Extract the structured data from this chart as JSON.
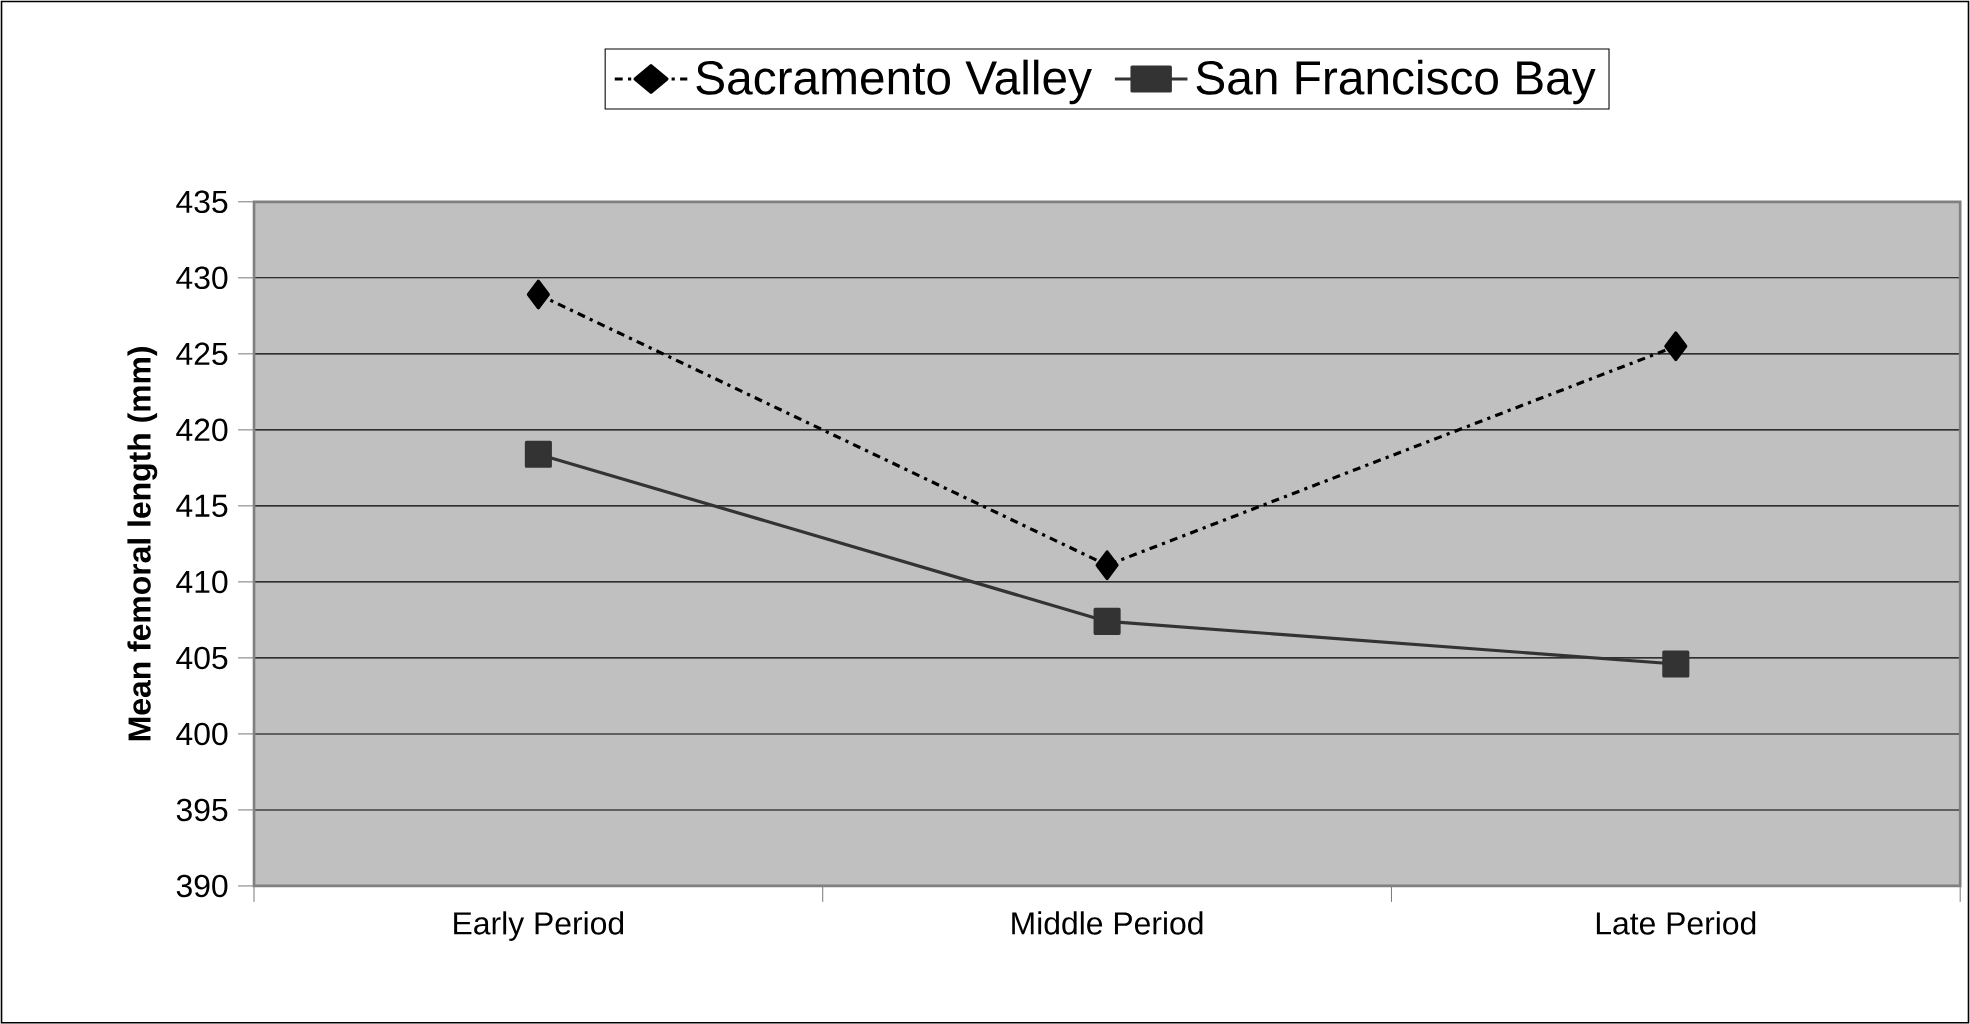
{
  "chart_data": {
    "type": "line",
    "ylabel": "Mean femoral length (mm)",
    "categories": [
      "Early Period",
      "Middle Period",
      "Late Period"
    ],
    "series": [
      {
        "name": "Sacramento Valley",
        "color": "#000000",
        "marker": "diamond",
        "line_style": "dashed",
        "values": [
          428.9,
          411.1,
          425.5
        ]
      },
      {
        "name": "San Francisco Bay",
        "color": "#333333",
        "marker": "square",
        "line_style": "solid",
        "values": [
          418.4,
          407.4,
          404.6
        ]
      }
    ],
    "ylim": [
      390,
      435
    ],
    "yticks": [
      390,
      395,
      400,
      405,
      410,
      415,
      420,
      425,
      430,
      435
    ],
    "grid": "y",
    "legend": "top"
  }
}
